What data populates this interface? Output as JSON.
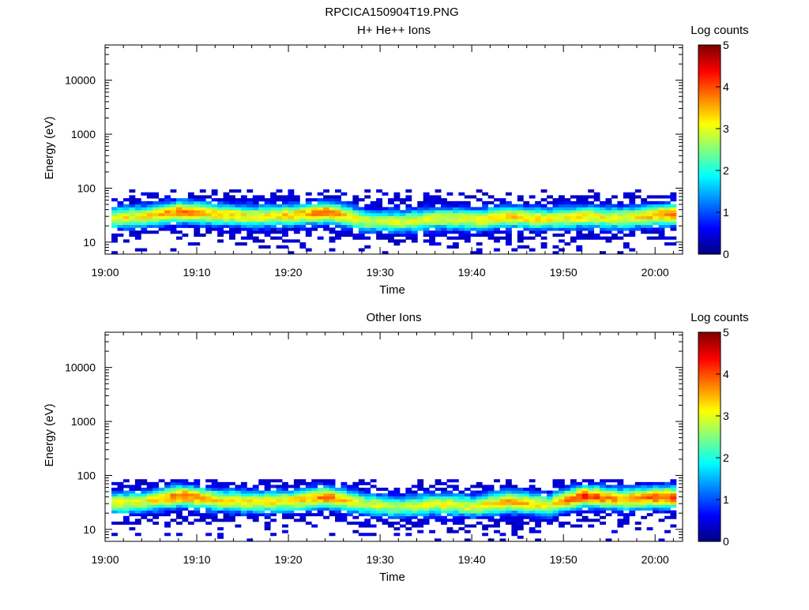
{
  "page_title": "RPCICA150904T19.PNG",
  "chart_data": [
    {
      "type": "heatmap",
      "title": "H+ He++ Ions",
      "xlabel": "Time",
      "ylabel": "Energy (eV)",
      "x_ticks": [
        "19:00",
        "19:10",
        "19:20",
        "19:30",
        "19:40",
        "19:50",
        "20:00"
      ],
      "y_ticks": [
        "10",
        "100",
        "1000",
        "10000"
      ],
      "y_scale": "log",
      "y_range": [
        6,
        45000
      ],
      "x_range_minutes": [
        0,
        63
      ],
      "colorbar": {
        "label": "Log counts",
        "ticks": [
          "0",
          "1",
          "2",
          "3",
          "4",
          "5"
        ],
        "range": [
          0,
          5
        ],
        "colormap": "jet"
      },
      "grid": false,
      "energy_coverage_eV": [
        6,
        95
      ],
      "peak": {
        "energy_eV": [
          25,
          40
        ],
        "log_counts": [
          3,
          4.5
        ]
      },
      "peak_track_minutes": [
        0,
        4,
        8,
        12,
        16,
        20,
        24,
        28,
        32,
        36,
        40,
        44,
        48,
        52,
        56,
        60,
        63
      ],
      "peak_track_energy_eV": [
        28,
        30,
        37,
        33,
        30,
        32,
        36,
        25,
        24,
        28,
        26,
        30,
        27,
        30,
        28,
        32,
        35
      ],
      "peak_track_log_counts": [
        3.0,
        3.2,
        3.8,
        3.3,
        3.1,
        3.3,
        3.8,
        2.8,
        2.9,
        3.0,
        3.1,
        3.4,
        3.1,
        3.2,
        3.0,
        3.5,
        4.2
      ]
    },
    {
      "type": "heatmap",
      "title": "Other Ions",
      "xlabel": "Time",
      "ylabel": "Energy (eV)",
      "x_ticks": [
        "19:00",
        "19:10",
        "19:20",
        "19:30",
        "19:40",
        "19:50",
        "20:00"
      ],
      "y_ticks": [
        "10",
        "100",
        "1000",
        "10000"
      ],
      "y_scale": "log",
      "y_range": [
        6,
        45000
      ],
      "x_range_minutes": [
        0,
        63
      ],
      "colorbar": {
        "label": "Log counts",
        "ticks": [
          "0",
          "1",
          "2",
          "3",
          "4",
          "5"
        ],
        "range": [
          0,
          5
        ],
        "colormap": "jet"
      },
      "grid": false,
      "energy_coverage_eV": [
        6,
        85
      ],
      "peak": {
        "energy_eV": [
          28,
          45
        ],
        "log_counts": [
          3,
          4.6
        ]
      },
      "peak_track_minutes": [
        0,
        4,
        8,
        12,
        16,
        20,
        24,
        28,
        32,
        36,
        40,
        44,
        48,
        52,
        56,
        60,
        63
      ],
      "peak_track_energy_eV": [
        30,
        33,
        42,
        35,
        32,
        34,
        40,
        30,
        26,
        30,
        27,
        33,
        28,
        42,
        36,
        40,
        38
      ],
      "peak_track_log_counts": [
        3.0,
        3.1,
        3.9,
        3.2,
        3.1,
        3.2,
        3.8,
        2.9,
        2.8,
        3.0,
        3.0,
        3.5,
        3.1,
        4.2,
        3.5,
        3.9,
        4.3
      ]
    }
  ]
}
